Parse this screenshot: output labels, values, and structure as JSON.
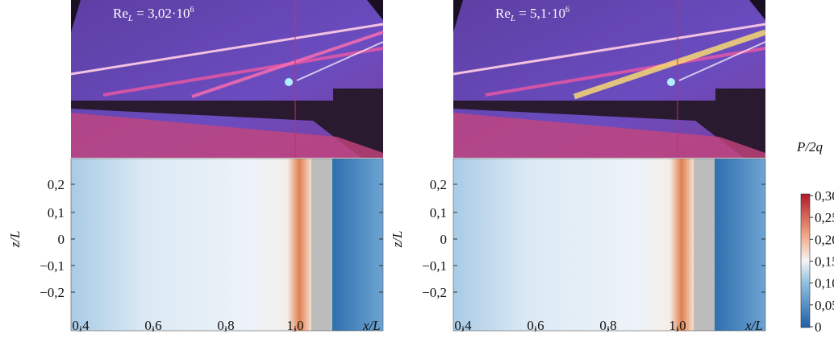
{
  "panels": [
    {
      "re": {
        "base": "Re",
        "sub": "L",
        "rest": " = 3,02·10",
        "sup": "6"
      }
    },
    {
      "re": {
        "base": "Re",
        "sub": "L",
        "rest": " = 5,1·10",
        "sup": "6"
      }
    }
  ],
  "x_ticks": [
    "0,4",
    "0,6",
    "0,8",
    "1,0"
  ],
  "x_axis_label": "x/L",
  "y_ticks": [
    "0,2",
    "0,1",
    "0",
    "−0,1",
    "−0,2"
  ],
  "y_axis_label": "z/L",
  "colorbar": {
    "title": "P/2q",
    "ticks": [
      "0,30",
      "0,25",
      "0,20",
      "0,15",
      "0,10",
      "0,05",
      "0"
    ]
  }
}
